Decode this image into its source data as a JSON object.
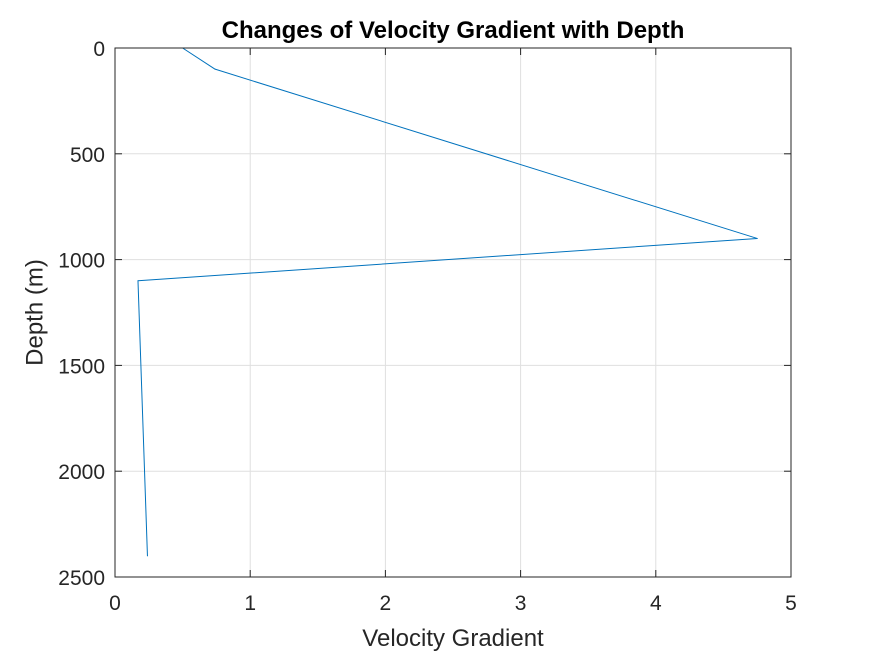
{
  "chart_data": {
    "type": "line",
    "title": "Changes of Velocity Gradient with Depth",
    "xlabel": "Velocity Gradient",
    "ylabel": "Depth (m)",
    "xlim": [
      0,
      5
    ],
    "ylim": [
      0,
      2500
    ],
    "y_reversed": true,
    "grid": true,
    "x_ticks": [
      0,
      1,
      2,
      3,
      4,
      5
    ],
    "y_ticks": [
      0,
      500,
      1000,
      1500,
      2000,
      2500
    ],
    "series": [
      {
        "color": "#0072BD",
        "points": [
          {
            "x": 0.5,
            "y": 0
          },
          {
            "x": 0.74,
            "y": 100
          },
          {
            "x": 4.75,
            "y": 900
          },
          {
            "x": 0.17,
            "y": 1100
          },
          {
            "x": 0.24,
            "y": 2400
          }
        ]
      }
    ]
  }
}
